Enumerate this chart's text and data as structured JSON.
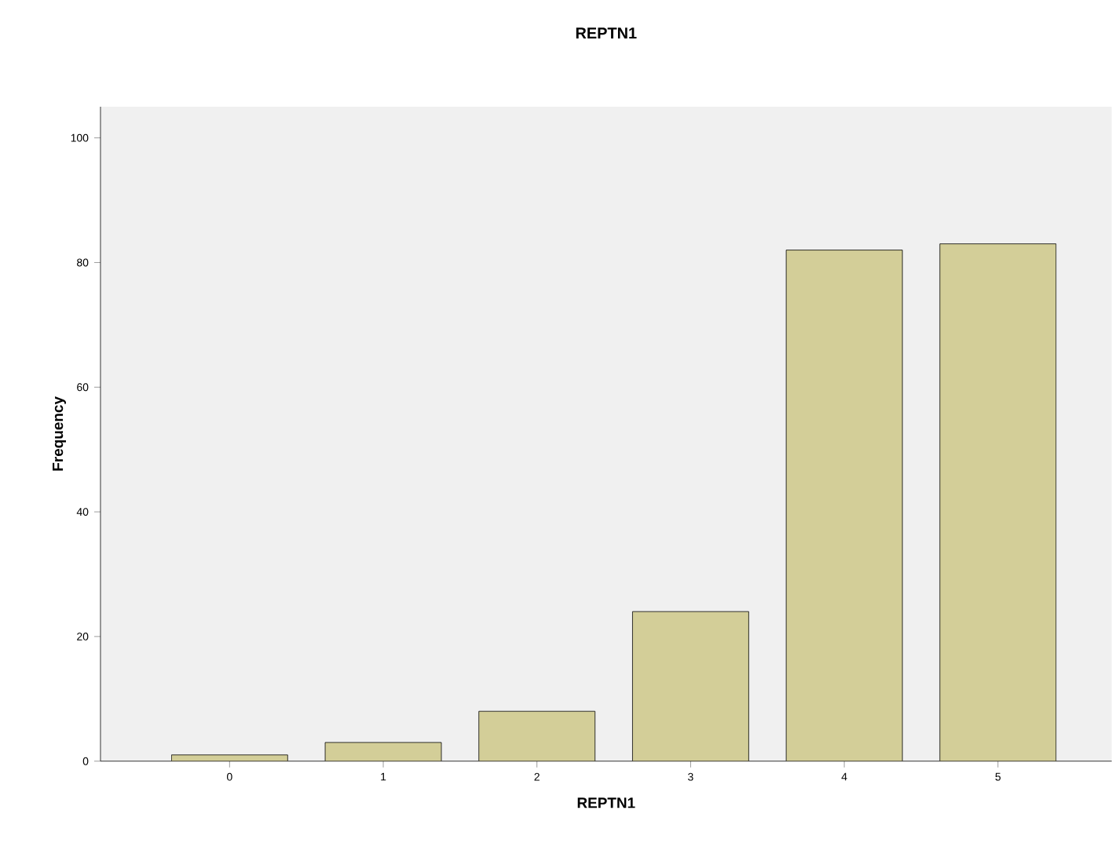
{
  "chart_data": {
    "type": "bar",
    "title": "REPTN1",
    "xlabel": "REPTN1",
    "ylabel": "Frequency",
    "categories": [
      "0",
      "1",
      "2",
      "3",
      "4",
      "5"
    ],
    "values": [
      1,
      3,
      8,
      24,
      82,
      83
    ],
    "color": "#d3ce98",
    "ylim": [
      0,
      105
    ],
    "yticks": [
      0,
      20,
      40,
      60,
      80,
      100
    ]
  }
}
